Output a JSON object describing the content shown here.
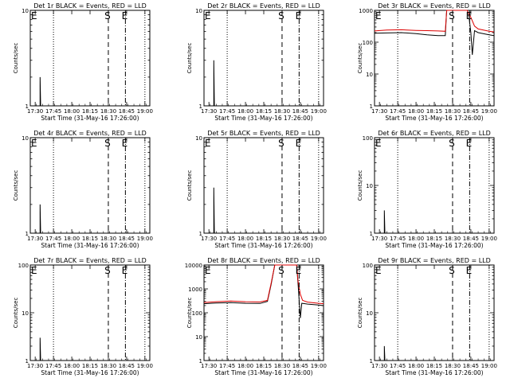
{
  "chart_data": [
    {
      "type": "line",
      "title": "Det 1r BLACK = Events, RED = LLD",
      "xlabel": "Start Time (31-May-16 17:26:00)",
      "ylabel": "Counts/sec",
      "yscale": "log",
      "ylim": [
        1,
        10
      ],
      "yticks": [
        1,
        10
      ],
      "xticks": [
        "17:30",
        "17:45",
        "18:00",
        "18:15",
        "18:30",
        "18:45",
        "19:00"
      ],
      "markers": [
        {
          "label": "E",
          "time": "17:26"
        },
        {
          "label": "S",
          "time": "18:30"
        },
        {
          "label": "E",
          "time": "18:44"
        }
      ],
      "series": [
        {
          "name": "Events",
          "color": "#000000",
          "points": [
            [
              17.567,
              1
            ],
            [
              17.567,
              2
            ],
            [
              17.575,
              1
            ]
          ]
        }
      ]
    },
    {
      "type": "line",
      "title": "Det 2r BLACK = Events, RED = LLD",
      "xlabel": "Start Time (31-May-16 17:26:00)",
      "ylabel": "Counts/sec",
      "yscale": "log",
      "ylim": [
        1,
        10
      ],
      "yticks": [
        1,
        10
      ],
      "xticks": [
        "17:30",
        "17:45",
        "18:00",
        "18:15",
        "18:30",
        "18:45",
        "19:00"
      ],
      "markers": [
        {
          "label": "E",
          "time": "17:26"
        },
        {
          "label": "S",
          "time": "18:30"
        },
        {
          "label": "E",
          "time": "18:44"
        }
      ],
      "series": [
        {
          "name": "Events",
          "color": "#000000",
          "points": [
            [
              17.567,
              1
            ],
            [
              17.567,
              3
            ],
            [
              17.575,
              1
            ]
          ]
        }
      ]
    },
    {
      "type": "line",
      "title": "Det 3r BLACK = Events, RED = LLD",
      "xlabel": "Start Time (31-May-16 17:26:00)",
      "ylabel": "Counts/sec",
      "yscale": "log",
      "ylim": [
        1,
        1000
      ],
      "yticks": [
        1,
        10,
        100,
        1000
      ],
      "xticks": [
        "17:30",
        "17:45",
        "18:00",
        "18:15",
        "18:30",
        "18:45",
        "19:00"
      ],
      "markers": [
        {
          "label": "E",
          "time": "17:26"
        },
        {
          "label": "S",
          "time": "18:30"
        },
        {
          "label": "E",
          "time": "18:44"
        }
      ],
      "series": [
        {
          "name": "Events",
          "color": "#000000",
          "points": [
            [
              17.433,
              190
            ],
            [
              17.6,
              195
            ],
            [
              17.8,
              200
            ],
            [
              18,
              185
            ],
            [
              18.15,
              170
            ],
            [
              18.3,
              160
            ],
            [
              18.4,
              160
            ],
            [
              18.417,
              800
            ],
            [
              18.42,
              1000
            ],
            [
              18.7,
              1000
            ],
            [
              18.72,
              800
            ],
            [
              18.75,
              200
            ],
            [
              18.77,
              40
            ],
            [
              18.8,
              230
            ],
            [
              18.85,
              200
            ],
            [
              19,
              170
            ],
            [
              19.067,
              160
            ]
          ]
        },
        {
          "name": "LLD",
          "color": "#dd0000",
          "points": [
            [
              17.433,
              225
            ],
            [
              17.6,
              240
            ],
            [
              17.8,
              245
            ],
            [
              18,
              235
            ],
            [
              18.15,
              230
            ],
            [
              18.3,
              225
            ],
            [
              18.4,
              220
            ],
            [
              18.417,
              800
            ],
            [
              18.42,
              1000
            ],
            [
              18.7,
              1000
            ],
            [
              18.72,
              800
            ],
            [
              18.75,
              600
            ],
            [
              18.8,
              320
            ],
            [
              18.85,
              260
            ],
            [
              19,
              220
            ],
            [
              19.067,
              210
            ]
          ]
        }
      ]
    },
    {
      "type": "line",
      "title": "Det 4r BLACK = Events, RED = LLD",
      "xlabel": "Start Time (31-May-16 17:26:00)",
      "ylabel": "Counts/sec",
      "yscale": "log",
      "ylim": [
        1,
        10
      ],
      "yticks": [
        1,
        10
      ],
      "xticks": [
        "17:30",
        "17:45",
        "18:00",
        "18:15",
        "18:30",
        "18:45",
        "19:00"
      ],
      "markers": [
        {
          "label": "E",
          "time": "17:26"
        },
        {
          "label": "S",
          "time": "18:30"
        },
        {
          "label": "E",
          "time": "18:44"
        }
      ],
      "series": [
        {
          "name": "Events",
          "color": "#000000",
          "points": [
            [
              17.567,
              1
            ],
            [
              17.567,
              2
            ],
            [
              17.575,
              1
            ]
          ]
        }
      ]
    },
    {
      "type": "line",
      "title": "Det 5r BLACK = Events, RED = LLD",
      "xlabel": "Start Time (31-May-16 17:26:00)",
      "ylabel": "Counts/sec",
      "yscale": "log",
      "ylim": [
        1,
        10
      ],
      "yticks": [
        1,
        10
      ],
      "xticks": [
        "17:30",
        "17:45",
        "18:00",
        "18:15",
        "18:30",
        "18:45",
        "19:00"
      ],
      "markers": [
        {
          "label": "E",
          "time": "17:26"
        },
        {
          "label": "S",
          "time": "18:30"
        },
        {
          "label": "E",
          "time": "18:44"
        }
      ],
      "series": [
        {
          "name": "Events",
          "color": "#000000",
          "points": [
            [
              17.567,
              1
            ],
            [
              17.567,
              3
            ],
            [
              17.575,
              1
            ]
          ]
        }
      ]
    },
    {
      "type": "line",
      "title": "Det 6r BLACK = Events, RED = LLD",
      "xlabel": "Start Time (31-May-16 17:26:00)",
      "ylabel": "Counts/sec",
      "yscale": "log",
      "ylim": [
        1,
        100
      ],
      "yticks": [
        1,
        10,
        100
      ],
      "xticks": [
        "17:30",
        "17:45",
        "18:00",
        "18:15",
        "18:30",
        "18:45",
        "19:00"
      ],
      "markers": [
        {
          "label": "E",
          "time": "17:26"
        },
        {
          "label": "S",
          "time": "18:30"
        },
        {
          "label": "E",
          "time": "18:44"
        }
      ],
      "series": [
        {
          "name": "Events",
          "color": "#000000",
          "points": [
            [
              17.567,
              1
            ],
            [
              17.567,
              3
            ],
            [
              17.575,
              1
            ]
          ]
        }
      ]
    },
    {
      "type": "line",
      "title": "Det 7r BLACK = Events, RED = LLD",
      "xlabel": "Start Time (31-May-16 17:26:00)",
      "ylabel": "Counts/sec",
      "yscale": "log",
      "ylim": [
        1,
        100
      ],
      "yticks": [
        1,
        10,
        100
      ],
      "xticks": [
        "17:30",
        "17:45",
        "18:00",
        "18:15",
        "18:30",
        "18:45",
        "19:00"
      ],
      "markers": [
        {
          "label": "E",
          "time": "17:26"
        },
        {
          "label": "S",
          "time": "18:30"
        },
        {
          "label": "E",
          "time": "18:44"
        }
      ],
      "series": [
        {
          "name": "Events",
          "color": "#000000",
          "points": [
            [
              17.567,
              1
            ],
            [
              17.567,
              3
            ],
            [
              17.575,
              1
            ]
          ]
        }
      ]
    },
    {
      "type": "line",
      "title": "Det 8r BLACK = Events, RED = LLD",
      "xlabel": "Start Time (31-May-16 17:26:00)",
      "ylabel": "Counts/sec",
      "yscale": "log",
      "ylim": [
        1,
        10000
      ],
      "yticks": [
        1,
        10,
        100,
        1000,
        10000
      ],
      "xticks": [
        "17:30",
        "17:45",
        "18:00",
        "18:15",
        "18:30",
        "18:45",
        "19:00"
      ],
      "markers": [
        {
          "label": "E",
          "time": "17:26"
        },
        {
          "label": "S",
          "time": "18:30"
        },
        {
          "label": "E",
          "time": "18:44"
        }
      ],
      "series": [
        {
          "name": "Events",
          "color": "#000000",
          "points": [
            [
              17.433,
              240
            ],
            [
              17.6,
              255
            ],
            [
              17.8,
              265
            ],
            [
              18,
              250
            ],
            [
              18.2,
              245
            ],
            [
              18.3,
              300
            ],
            [
              18.35,
              1500
            ],
            [
              18.4,
              10000
            ],
            [
              18.7,
              10000
            ],
            [
              18.72,
              1500
            ],
            [
              18.75,
              60
            ],
            [
              18.77,
              250
            ],
            [
              18.85,
              230
            ],
            [
              19,
              210
            ],
            [
              19.067,
              200
            ]
          ]
        },
        {
          "name": "LLD",
          "color": "#dd0000",
          "points": [
            [
              17.433,
              270
            ],
            [
              17.6,
              290
            ],
            [
              17.8,
              310
            ],
            [
              18,
              290
            ],
            [
              18.2,
              285
            ],
            [
              18.3,
              330
            ],
            [
              18.35,
              1700
            ],
            [
              18.4,
              10000
            ],
            [
              18.7,
              10000
            ],
            [
              18.72,
              2000
            ],
            [
              18.75,
              600
            ],
            [
              18.78,
              330
            ],
            [
              18.85,
              280
            ],
            [
              19,
              250
            ],
            [
              19.067,
              240
            ]
          ]
        }
      ]
    },
    {
      "type": "line",
      "title": "Det 9r BLACK = Events, RED = LLD",
      "xlabel": "Start Time (31-May-16 17:26:00)",
      "ylabel": "Counts/sec",
      "yscale": "log",
      "ylim": [
        1,
        100
      ],
      "yticks": [
        1,
        10,
        100
      ],
      "xticks": [
        "17:30",
        "17:45",
        "18:00",
        "18:15",
        "18:30",
        "18:45",
        "19:00"
      ],
      "markers": [
        {
          "label": "E",
          "time": "17:26"
        },
        {
          "label": "S",
          "time": "18:30"
        },
        {
          "label": "E",
          "time": "18:44"
        }
      ],
      "series": [
        {
          "name": "Events",
          "color": "#000000",
          "points": [
            [
              17.567,
              1
            ],
            [
              17.567,
              2
            ],
            [
              17.575,
              1
            ]
          ]
        }
      ]
    }
  ]
}
